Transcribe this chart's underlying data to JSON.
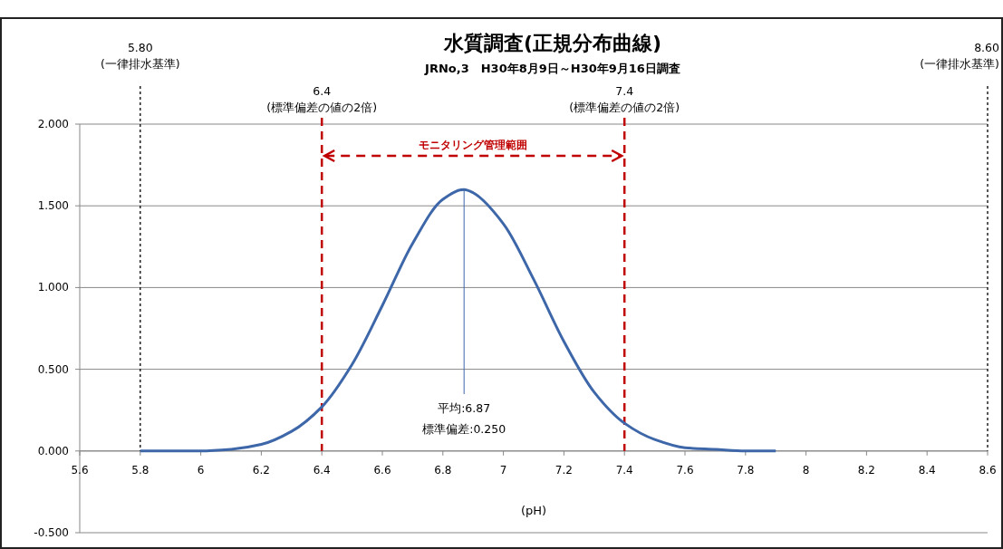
{
  "chart_data": {
    "type": "line",
    "title": "水質調査(正規分布曲線)",
    "subtitle": "JRNo,3　H30年8月9日～H30年9月16日調査",
    "xlabel": "(pH)",
    "x": [
      5.8,
      5.9,
      6.0,
      6.1,
      6.2,
      6.3,
      6.4,
      6.5,
      6.6,
      6.7,
      6.8,
      6.87,
      6.9,
      7.0,
      7.1,
      7.2,
      7.3,
      7.4,
      7.5,
      7.6,
      7.7,
      7.8,
      7.9
    ],
    "values": [
      0.0,
      0.0,
      0.0,
      0.01,
      0.04,
      0.12,
      0.27,
      0.53,
      0.89,
      1.27,
      1.54,
      1.6,
      1.58,
      1.39,
      1.05,
      0.67,
      0.36,
      0.17,
      0.07,
      0.02,
      0.01,
      0.0,
      0.0
    ],
    "color": "#3d67a8",
    "xlim": [
      5.6,
      8.6
    ],
    "ylim": [
      -0.5,
      2.0
    ],
    "xticks": [
      5.6,
      5.8,
      6,
      6.2,
      6.4,
      6.6,
      6.8,
      7,
      7.2,
      7.4,
      7.6,
      7.8,
      8,
      8.2,
      8.4,
      8.6
    ],
    "yticks": [
      {
        "value": -0.5,
        "label": "-0.500"
      },
      {
        "value": 0,
        "label": "0.000"
      },
      {
        "value": 0.5,
        "label": "0.500"
      },
      {
        "value": 1,
        "label": "1.000"
      },
      {
        "value": 1.5,
        "label": "1.500"
      },
      {
        "value": 2,
        "label": "2.000"
      }
    ],
    "grid": "y",
    "ref_lines": [
      {
        "axis": "x",
        "value": 5.8,
        "label": "5.80\n(一律排水基準)",
        "color": "#000000",
        "line_style": "dotted"
      },
      {
        "axis": "x",
        "value": 8.6,
        "label": "8.60\n(一律排水基準)",
        "color": "#000000",
        "line_style": "dotted"
      },
      {
        "axis": "x",
        "value": 6.4,
        "label": "6.4\n(標準偏差の値の2倍)",
        "color": "#c00000",
        "line_style": "dashed"
      },
      {
        "axis": "x",
        "value": 7.4,
        "label": "7.4\n(標準偏差の値の2倍)",
        "color": "#c00000",
        "line_style": "dashed"
      },
      {
        "axis": "x",
        "value": 6.87,
        "label": "平均:6.87",
        "color": "#3d67a8",
        "line_style": "solid"
      }
    ],
    "annotations": [
      "モニタリング管理範囲",
      "標準偏差:0.250"
    ]
  }
}
